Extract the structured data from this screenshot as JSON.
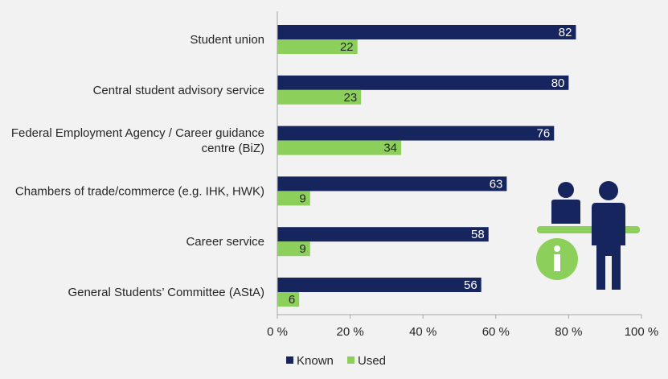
{
  "chart_data": {
    "type": "bar",
    "orientation": "horizontal",
    "categories": [
      [
        "Student union"
      ],
      [
        "Central student advisory service"
      ],
      [
        "Federal Employment Agency / Career guidance",
        "centre (BiZ)"
      ],
      [
        "Chambers of trade/commerce (e.g. IHK, HWK)"
      ],
      [
        "Career service"
      ],
      [
        "General Students’ Committee (AStA)"
      ]
    ],
    "series": [
      {
        "name": "Known",
        "color": "#17255e",
        "label_color": "#ffffff",
        "values": [
          82,
          80,
          76,
          63,
          58,
          56
        ]
      },
      {
        "name": "Used",
        "color": "#8ccf5a",
        "label_color": "#262626",
        "values": [
          22,
          23,
          34,
          9,
          9,
          6
        ]
      }
    ],
    "xlim": [
      0,
      100
    ],
    "xticks": [
      0,
      20,
      40,
      60,
      80,
      100
    ],
    "tick_suffix": " %",
    "legend_position": "bottom",
    "grid": false,
    "title": "",
    "xlabel": "",
    "ylabel": ""
  },
  "illustration": {
    "icon": "information-desk-icon",
    "person_color": "#17255e",
    "accent_color": "#8ccf5a"
  }
}
